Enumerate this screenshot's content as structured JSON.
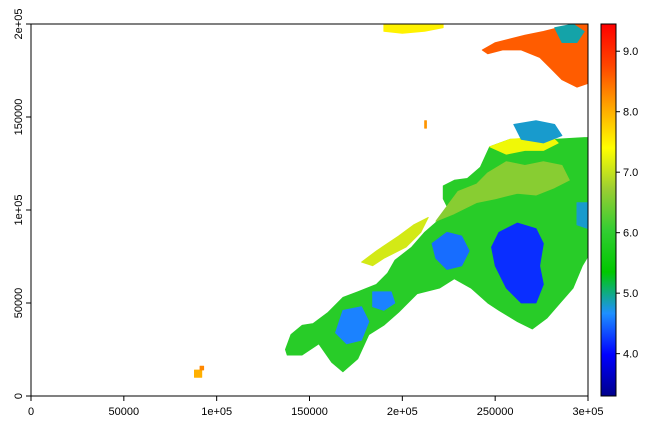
{
  "chart_data": {
    "type": "heatmap",
    "title": "",
    "xlabel": "",
    "ylabel": "",
    "xlim": [
      0,
      300000
    ],
    "ylim": [
      0,
      200000
    ],
    "x_ticks": [
      {
        "value": 0,
        "label": "0"
      },
      {
        "value": 50000,
        "label": "50000"
      },
      {
        "value": 100000,
        "label": "1e+05"
      },
      {
        "value": 150000,
        "label": "150000"
      },
      {
        "value": 200000,
        "label": "2e+05"
      },
      {
        "value": 250000,
        "label": "250000"
      },
      {
        "value": 300000,
        "label": "3e+05"
      }
    ],
    "y_ticks": [
      {
        "value": 0,
        "label": "0"
      },
      {
        "value": 50000,
        "label": "50000"
      },
      {
        "value": 100000,
        "label": "1e+05"
      },
      {
        "value": 150000,
        "label": "150000"
      },
      {
        "value": 200000,
        "label": "2e+05"
      }
    ],
    "legend": {
      "placement": "right",
      "range": [
        3.3,
        9.45
      ],
      "ticks": [
        {
          "value": 4.0,
          "label": "4.0"
        },
        {
          "value": 5.0,
          "label": "5.0"
        },
        {
          "value": 6.0,
          "label": "6.0"
        },
        {
          "value": 7.0,
          "label": "7.0"
        },
        {
          "value": 8.0,
          "label": "8.0"
        },
        {
          "value": 9.0,
          "label": "9.0"
        }
      ],
      "colors": [
        "#00008b",
        "#0000ff",
        "#1e90ff",
        "#00c800",
        "#32cd32",
        "#9acd32",
        "#ffff00",
        "#ffa500",
        "#ff4500",
        "#ff0000"
      ]
    },
    "grid": false,
    "regions": [
      {
        "name": "",
        "value": 5.9,
        "polygon": [
          [
            137000,
            25000
          ],
          [
            140000,
            33000
          ],
          [
            146000,
            38000
          ],
          [
            152000,
            39000
          ],
          [
            160000,
            45000
          ],
          [
            168000,
            53000
          ],
          [
            176000,
            56000
          ],
          [
            186000,
            60000
          ],
          [
            192000,
            66000
          ],
          [
            196000,
            73000
          ],
          [
            205000,
            80000
          ],
          [
            212000,
            88000
          ],
          [
            220000,
            95000
          ],
          [
            225000,
            100000
          ],
          [
            222000,
            106000
          ],
          [
            222000,
            113000
          ],
          [
            228000,
            116000
          ],
          [
            235000,
            117000
          ],
          [
            242000,
            123000
          ],
          [
            247000,
            134000
          ],
          [
            258000,
            138000
          ],
          [
            270000,
            138000
          ],
          [
            282000,
            138000
          ],
          [
            298000,
            139000
          ],
          [
            300000,
            139000
          ],
          [
            300000,
            75000
          ],
          [
            297000,
            70000
          ],
          [
            292000,
            58000
          ],
          [
            285000,
            50000
          ],
          [
            278000,
            42000
          ],
          [
            270000,
            36000
          ],
          [
            262000,
            40000
          ],
          [
            252000,
            46000
          ],
          [
            246000,
            50000
          ],
          [
            237000,
            58000
          ],
          [
            228000,
            63000
          ],
          [
            220000,
            58000
          ],
          [
            208000,
            55000
          ],
          [
            198000,
            45000
          ],
          [
            190000,
            38000
          ],
          [
            182000,
            33000
          ],
          [
            176000,
            20000
          ],
          [
            168000,
            13000
          ],
          [
            162000,
            18000
          ],
          [
            155000,
            28000
          ],
          [
            146000,
            22000
          ],
          [
            138000,
            22000
          ]
        ]
      },
      {
        "name": "",
        "value": 6.6,
        "polygon": [
          [
            218000,
            94000
          ],
          [
            228000,
            98000
          ],
          [
            240000,
            104000
          ],
          [
            250000,
            106000
          ],
          [
            262000,
            109000
          ],
          [
            272000,
            108000
          ],
          [
            282000,
            112000
          ],
          [
            290000,
            116000
          ],
          [
            286000,
            124000
          ],
          [
            276000,
            126000
          ],
          [
            266000,
            124000
          ],
          [
            256000,
            126000
          ],
          [
            246000,
            120000
          ],
          [
            240000,
            114000
          ],
          [
            230000,
            110000
          ]
        ]
      },
      {
        "name": "",
        "value": 7.1,
        "polygon": [
          [
            190000,
            74000
          ],
          [
            202000,
            80000
          ],
          [
            210000,
            88000
          ],
          [
            214000,
            96000
          ],
          [
            206000,
            92000
          ],
          [
            198000,
            86000
          ],
          [
            186000,
            78000
          ],
          [
            178000,
            72000
          ],
          [
            184000,
            70000
          ]
        ]
      },
      {
        "name": "",
        "value": 7.3,
        "polygon": [
          [
            247000,
            134000
          ],
          [
            258000,
            138000
          ],
          [
            270000,
            139000
          ],
          [
            280000,
            140000
          ],
          [
            284000,
            136000
          ],
          [
            276000,
            132000
          ],
          [
            266000,
            132000
          ],
          [
            256000,
            130000
          ]
        ]
      },
      {
        "name": "",
        "value": 8.6,
        "polygon": [
          [
            243000,
            186000
          ],
          [
            250000,
            190000
          ],
          [
            258000,
            192000
          ],
          [
            266000,
            194000
          ],
          [
            276000,
            196000
          ],
          [
            284000,
            198000
          ],
          [
            292000,
            200000
          ],
          [
            300000,
            200000
          ],
          [
            300000,
            168000
          ],
          [
            294000,
            166000
          ],
          [
            286000,
            170000
          ],
          [
            280000,
            176000
          ],
          [
            274000,
            182000
          ],
          [
            264000,
            186000
          ],
          [
            254000,
            186000
          ],
          [
            246000,
            184000
          ]
        ]
      },
      {
        "name": "",
        "value": 7.5,
        "polygon": [
          [
            190000,
            200000
          ],
          [
            222000,
            200000
          ],
          [
            222000,
            198000
          ],
          [
            212000,
            196000
          ],
          [
            200000,
            195000
          ],
          [
            190000,
            196000
          ]
        ]
      },
      {
        "name": "",
        "value": 8.2,
        "polygon": [
          [
            212000,
            148000
          ],
          [
            213000,
            148000
          ],
          [
            213000,
            144000
          ],
          [
            212000,
            144000
          ]
        ]
      },
      {
        "name": "",
        "value": 8.0,
        "polygon": [
          [
            88000,
            10000
          ],
          [
            92000,
            10000
          ],
          [
            92000,
            14000
          ],
          [
            88000,
            14000
          ]
        ]
      },
      {
        "name": "",
        "value": 8.3,
        "polygon": [
          [
            91000,
            14000
          ],
          [
            93000,
            14000
          ],
          [
            93000,
            16000
          ],
          [
            91000,
            16000
          ]
        ]
      },
      {
        "name": "",
        "value": 4.2,
        "polygon": [
          [
            252000,
            88000
          ],
          [
            262000,
            93000
          ],
          [
            272000,
            90000
          ],
          [
            276000,
            82000
          ],
          [
            274000,
            70000
          ],
          [
            276000,
            60000
          ],
          [
            272000,
            50000
          ],
          [
            264000,
            50000
          ],
          [
            256000,
            58000
          ],
          [
            250000,
            70000
          ],
          [
            248000,
            80000
          ]
        ]
      },
      {
        "name": "",
        "value": 4.5,
        "polygon": [
          [
            216000,
            82000
          ],
          [
            224000,
            88000
          ],
          [
            232000,
            86000
          ],
          [
            236000,
            78000
          ],
          [
            232000,
            70000
          ],
          [
            224000,
            68000
          ],
          [
            218000,
            74000
          ]
        ]
      },
      {
        "name": "",
        "value": 4.6,
        "polygon": [
          [
            168000,
            46000
          ],
          [
            178000,
            48000
          ],
          [
            182000,
            40000
          ],
          [
            178000,
            30000
          ],
          [
            170000,
            28000
          ],
          [
            164000,
            34000
          ]
        ]
      },
      {
        "name": "",
        "value": 4.6,
        "polygon": [
          [
            184000,
            56000
          ],
          [
            194000,
            56000
          ],
          [
            196000,
            50000
          ],
          [
            190000,
            46000
          ],
          [
            184000,
            48000
          ]
        ]
      },
      {
        "name": "",
        "value": 4.8,
        "polygon": [
          [
            260000,
            146000
          ],
          [
            272000,
            148000
          ],
          [
            282000,
            146000
          ],
          [
            286000,
            140000
          ],
          [
            276000,
            136000
          ],
          [
            264000,
            138000
          ]
        ]
      },
      {
        "name": "",
        "value": 4.9,
        "polygon": [
          [
            282000,
            198000
          ],
          [
            292000,
            200000
          ],
          [
            298000,
            196000
          ],
          [
            294000,
            190000
          ],
          [
            286000,
            190000
          ]
        ]
      },
      {
        "name": "",
        "value": 4.8,
        "polygon": [
          [
            294000,
            104000
          ],
          [
            300000,
            104000
          ],
          [
            300000,
            90000
          ],
          [
            294000,
            92000
          ]
        ]
      }
    ]
  }
}
